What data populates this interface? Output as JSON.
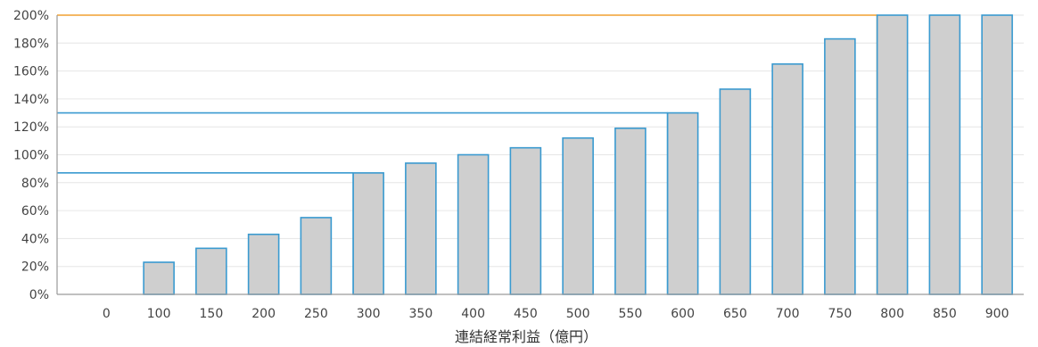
{
  "chart_data": {
    "type": "bar",
    "title": "",
    "xlabel": "連結経常利益（億円）",
    "ylabel": "",
    "categories": [
      "0",
      "100",
      "150",
      "200",
      "250",
      "300",
      "350",
      "400",
      "450",
      "500",
      "550",
      "600",
      "650",
      "700",
      "750",
      "800",
      "850",
      "900"
    ],
    "values": [
      0,
      23,
      33,
      43,
      55,
      87,
      94,
      100,
      105,
      112,
      119,
      130,
      147,
      165,
      183,
      200,
      200,
      200
    ],
    "y_ticks": [
      "0%",
      "20%",
      "40%",
      "60%",
      "80%",
      "100%",
      "120%",
      "140%",
      "160%",
      "180%",
      "200%"
    ],
    "ylim": [
      0,
      200
    ],
    "grid": true,
    "legend": "none",
    "bar_fill": "#cfcfcf",
    "bar_stroke": "#3a9ad0",
    "grid_color": "#e6e6e6",
    "reference_lines": [
      {
        "category": "300",
        "value": 87,
        "color": "#3a9ad0"
      },
      {
        "category": "600",
        "value": 130,
        "color": "#3a9ad0"
      },
      {
        "category": "800",
        "value": 200,
        "color": "#f0a030"
      }
    ]
  }
}
